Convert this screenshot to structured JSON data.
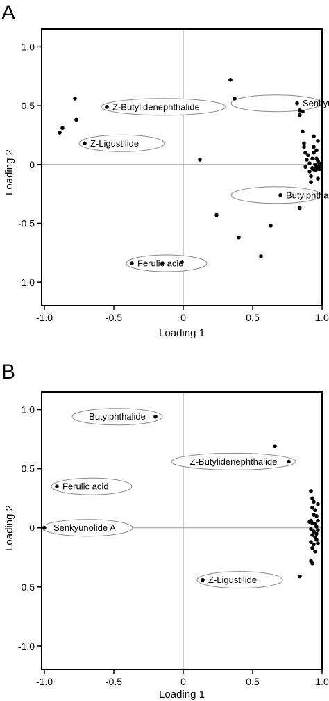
{
  "chart_data": [
    {
      "panel_label": "A",
      "type": "scatter",
      "xlabel": "Loading 1",
      "ylabel": "Loading 2",
      "xlim": [
        -1.02,
        1.0
      ],
      "ylim": [
        -1.2,
        1.15
      ],
      "xticks": [
        -1.0,
        -0.5,
        0,
        0.5,
        1.0
      ],
      "yticks": [
        -1.0,
        -0.5,
        0,
        0.5,
        1.0
      ],
      "xtick_labels": [
        "-1.0",
        "-0.5",
        "0",
        "0.5",
        "1.0"
      ],
      "ytick_labels": [
        "-1.0",
        "-0.5",
        "0",
        "0.5",
        "1.0"
      ],
      "grid": false,
      "zero_lines": true,
      "points": [
        [
          -0.78,
          0.56
        ],
        [
          -0.77,
          0.38
        ],
        [
          -0.87,
          0.31
        ],
        [
          -0.89,
          0.27
        ],
        [
          -0.55,
          0.49
        ],
        [
          -0.71,
          0.18
        ],
        [
          -0.37,
          -0.84
        ],
        [
          -0.15,
          -0.84
        ],
        [
          -0.01,
          -0.83
        ],
        [
          0.12,
          0.04
        ],
        [
          0.24,
          -0.43
        ],
        [
          0.34,
          0.72
        ],
        [
          0.37,
          0.56
        ],
        [
          0.4,
          -0.62
        ],
        [
          0.56,
          -0.78
        ],
        [
          0.63,
          -0.52
        ],
        [
          0.7,
          -0.26
        ],
        [
          0.84,
          -0.37
        ],
        [
          0.82,
          0.52
        ],
        [
          0.84,
          0.46
        ],
        [
          0.86,
          0.45
        ],
        [
          0.84,
          0.42
        ],
        [
          0.86,
          0.28
        ],
        [
          0.87,
          0.18
        ],
        [
          0.87,
          0.15
        ],
        [
          0.88,
          0.1
        ],
        [
          0.88,
          -0.02
        ],
        [
          0.89,
          0.04
        ],
        [
          0.9,
          0.08
        ],
        [
          0.91,
          0.01
        ],
        [
          0.91,
          -0.06
        ],
        [
          0.92,
          -0.1
        ],
        [
          0.93,
          0.05
        ],
        [
          0.93,
          -0.03
        ],
        [
          0.94,
          0.24
        ],
        [
          0.94,
          0.15
        ],
        [
          0.94,
          0.1
        ],
        [
          0.94,
          -0.04
        ],
        [
          0.95,
          0.0
        ],
        [
          0.95,
          -0.05
        ],
        [
          0.96,
          0.05
        ],
        [
          0.96,
          -0.02
        ],
        [
          0.96,
          -0.04
        ],
        [
          0.97,
          0.03
        ],
        [
          0.97,
          -0.12
        ],
        [
          0.98,
          -0.02
        ],
        [
          0.98,
          0.01
        ],
        [
          0.98,
          -0.04
        ],
        [
          0.97,
          0.2
        ],
        [
          0.96,
          0.12
        ],
        [
          0.99,
          -0.03
        ],
        [
          0.92,
          -0.15
        ]
      ],
      "annotations": [
        {
          "label": "Z-Butylidenephthalide",
          "x": -0.55,
          "y": 0.49
        },
        {
          "label": "Senkyunolide A",
          "x": 0.82,
          "y": 0.52
        },
        {
          "label": "Z-Ligustilide",
          "x": -0.71,
          "y": 0.18
        },
        {
          "label": "Butylphthalide",
          "x": 0.7,
          "y": -0.26
        },
        {
          "label": "Ferulic acid",
          "x": -0.37,
          "y": -0.84
        }
      ]
    },
    {
      "panel_label": "B",
      "type": "scatter",
      "xlabel": "Loading 1",
      "ylabel": "Loading 2",
      "xlim": [
        -1.02,
        1.0
      ],
      "ylim": [
        -1.2,
        1.15
      ],
      "xticks": [
        -1.0,
        -0.5,
        0,
        0.5,
        1.0
      ],
      "yticks": [
        -1.0,
        -0.5,
        0,
        0.5,
        1.0
      ],
      "xtick_labels": [
        "-1.0",
        "-0.5",
        "0",
        "0.5",
        "1.0"
      ],
      "ytick_labels": [
        "-1.0",
        "-0.5",
        "0",
        "0.5",
        "1.0"
      ],
      "grid": false,
      "zero_lines": true,
      "points": [
        [
          -0.2,
          0.94
        ],
        [
          0.66,
          0.69
        ],
        [
          0.76,
          0.56
        ],
        [
          -0.91,
          0.35
        ],
        [
          -1.0,
          0.0
        ],
        [
          0.14,
          -0.44
        ],
        [
          0.84,
          -0.41
        ],
        [
          0.92,
          0.31
        ],
        [
          0.93,
          0.25
        ],
        [
          0.94,
          0.22
        ],
        [
          0.93,
          0.17
        ],
        [
          0.95,
          0.15
        ],
        [
          0.94,
          0.11
        ],
        [
          0.96,
          0.1
        ],
        [
          0.92,
          0.06
        ],
        [
          0.93,
          0.04
        ],
        [
          0.95,
          0.03
        ],
        [
          0.96,
          0.01
        ],
        [
          0.92,
          -0.01
        ],
        [
          0.94,
          -0.03
        ],
        [
          0.97,
          -0.02
        ],
        [
          0.93,
          -0.06
        ],
        [
          0.95,
          -0.08
        ],
        [
          0.96,
          -0.1
        ],
        [
          0.92,
          -0.12
        ],
        [
          0.94,
          -0.14
        ],
        [
          0.97,
          -0.13
        ],
        [
          0.93,
          -0.17
        ],
        [
          0.95,
          -0.2
        ],
        [
          0.92,
          -0.28
        ],
        [
          0.93,
          -0.3
        ],
        [
          0.97,
          0.06
        ],
        [
          0.96,
          -0.05
        ],
        [
          0.91,
          0.05
        ],
        [
          0.97,
          0.2
        ]
      ],
      "annotations": [
        {
          "label": "Butylphthalide",
          "x": -0.2,
          "y": 0.94
        },
        {
          "label": "Z-Butylidenephthalide",
          "x": 0.76,
          "y": 0.56
        },
        {
          "label": "Ferulic acid",
          "x": -0.91,
          "y": 0.35
        },
        {
          "label": "Senkyunolide A",
          "x": -1.0,
          "y": 0.0
        },
        {
          "label": "Z-Ligustilide",
          "x": 0.14,
          "y": -0.44
        }
      ]
    }
  ]
}
